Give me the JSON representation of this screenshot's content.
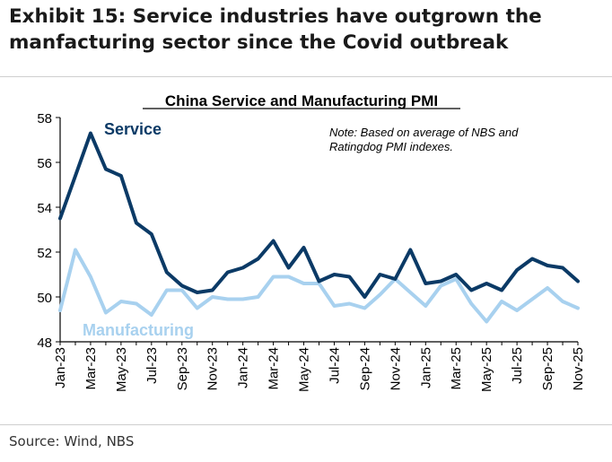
{
  "exhibit": {
    "title_line1": "Exhibit 15: Service industries have outgrown the",
    "title_line2": "manfacturing sector since the Covid outbreak",
    "source": "Source: Wind, NBS"
  },
  "colors": {
    "service": "#0b3a66",
    "manufacturing": "#a8d1ef",
    "axis": "#000000"
  },
  "chart_data": {
    "type": "line",
    "title": "China Service and Manufacturing PMI",
    "note_line1": "Note: Based on average of NBS and",
    "note_line2": "Ratingdog PMI indexes.",
    "xlabel": "",
    "ylabel": "",
    "ylim": [
      48,
      58
    ],
    "yticks": [
      48,
      50,
      52,
      54,
      56,
      58
    ],
    "categories": [
      "Jan-23",
      "Feb-23",
      "Mar-23",
      "Apr-23",
      "May-23",
      "Jun-23",
      "Jul-23",
      "Aug-23",
      "Sep-23",
      "Oct-23",
      "Nov-23",
      "Dec-23",
      "Jan-24",
      "Feb-24",
      "Mar-24",
      "Apr-24",
      "May-24",
      "Jun-24",
      "Jul-24",
      "Aug-24",
      "Sep-24",
      "Oct-24",
      "Nov-24",
      "Dec-24",
      "Jan-25",
      "Feb-25",
      "Mar-25",
      "Apr-25",
      "May-25",
      "Jun-25",
      "Jul-25",
      "Aug-25",
      "Sep-25",
      "Oct-25",
      "Nov-25"
    ],
    "tick_labels": [
      "Jan-23",
      "Mar-23",
      "May-23",
      "Jul-23",
      "Sep-23",
      "Nov-23",
      "Jan-24",
      "Mar-24",
      "May-24",
      "Jul-24",
      "Sep-24",
      "Nov-24",
      "Jan-25",
      "Mar-25",
      "May-25",
      "Jul-25",
      "Sep-25",
      "Nov-25"
    ],
    "series": [
      {
        "name": "Service",
        "label": "Service",
        "values": [
          53.5,
          55.4,
          57.3,
          55.7,
          55.4,
          53.3,
          52.8,
          51.1,
          50.5,
          50.2,
          50.3,
          51.1,
          51.3,
          51.7,
          52.5,
          51.3,
          52.2,
          50.7,
          51.0,
          50.9,
          50.0,
          51.0,
          50.8,
          52.1,
          50.6,
          50.7,
          51.0,
          50.3,
          50.6,
          50.3,
          51.2,
          51.7,
          51.4,
          51.3,
          50.7
        ]
      },
      {
        "name": "Manufacturing",
        "label": "Manufacturing",
        "values": [
          49.4,
          52.1,
          50.9,
          49.3,
          49.8,
          49.7,
          49.2,
          50.3,
          50.3,
          49.5,
          50.0,
          49.9,
          49.9,
          50.0,
          50.9,
          50.9,
          50.6,
          50.6,
          49.6,
          49.7,
          49.5,
          50.1,
          50.8,
          50.2,
          49.6,
          50.5,
          50.8,
          49.7,
          48.9,
          49.8,
          49.4,
          49.9,
          50.4,
          49.8,
          49.5
        ]
      }
    ]
  }
}
